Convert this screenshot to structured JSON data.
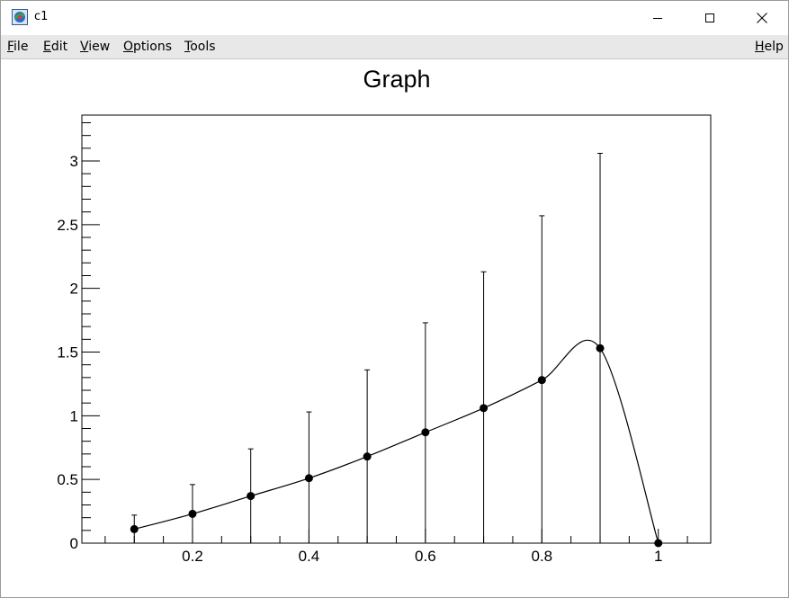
{
  "window": {
    "title": "c1",
    "icon": "root-app-icon",
    "controls": [
      "minimize-icon",
      "maximize-icon",
      "close-icon"
    ]
  },
  "menu": {
    "file": {
      "accel": "F",
      "rest": "ile"
    },
    "edit": {
      "accel": "E",
      "rest": "dit"
    },
    "view": {
      "accel": "V",
      "rest": "iew"
    },
    "options": {
      "accel": "O",
      "rest": "ptions"
    },
    "tools": {
      "accel": "T",
      "rest": "ools"
    },
    "help": {
      "accel": "H",
      "rest": "elp"
    }
  },
  "chart_data": {
    "type": "scatter",
    "title": "Graph",
    "xlabel": "",
    "ylabel": "",
    "xlim": [
      0.01,
      1.09
    ],
    "ylim": [
      0,
      3.36
    ],
    "x_ticks": [
      0.2,
      0.4,
      0.6,
      0.8,
      1
    ],
    "x_tick_labels": [
      "0.2",
      "0.4",
      "0.6",
      "0.8",
      "1"
    ],
    "y_ticks": [
      0,
      0.5,
      1,
      1.5,
      2,
      2.5,
      3
    ],
    "y_tick_labels": [
      "0",
      "0.5",
      "1",
      "1.5",
      "2",
      "2.5",
      "3"
    ],
    "grid": false,
    "legend": "none",
    "series": [
      {
        "x": [
          0.1,
          0.2,
          0.3,
          0.4,
          0.5,
          0.6,
          0.7,
          0.8,
          0.9,
          1.0
        ],
        "y": [
          0.11,
          0.23,
          0.37,
          0.51,
          0.68,
          0.87,
          1.06,
          1.28,
          1.53,
          0.0
        ],
        "y_err": [
          0.11,
          0.23,
          0.37,
          0.52,
          0.68,
          0.86,
          1.07,
          1.29,
          1.53,
          0.0
        ],
        "marker": "filled-circle",
        "line": "smooth"
      }
    ],
    "colors": {
      "marker": "#000000",
      "line": "#000000",
      "frame": "#000000"
    }
  }
}
